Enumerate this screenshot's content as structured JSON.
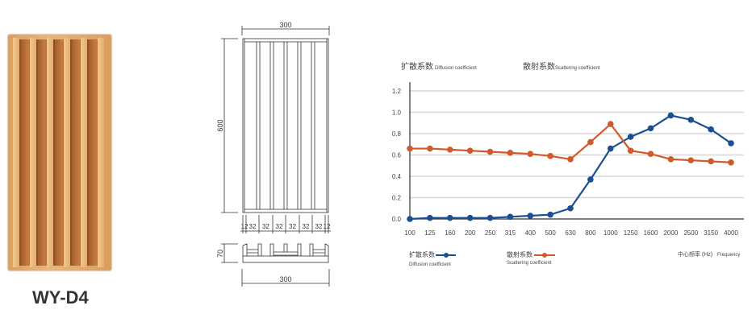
{
  "product": {
    "model": "WY-D4"
  },
  "drawing": {
    "width_top": "300",
    "height": "600",
    "depth": "70",
    "width_bottom": "300",
    "segments": [
      "12",
      "32",
      "32",
      "32",
      "32",
      "32",
      "32",
      "12"
    ]
  },
  "chart_data": {
    "type": "line",
    "title_left": {
      "zh": "扩散系数",
      "en": "Diffusion coefficient"
    },
    "title_right": {
      "zh": "散射系数",
      "en": "Scattering coefficient"
    },
    "xlabel": {
      "zh": "中心频率 (Hz)",
      "en": "Frequency"
    },
    "categories": [
      "100",
      "125",
      "160",
      "200",
      "250",
      "315",
      "400",
      "500",
      "630",
      "800",
      "1000",
      "1250",
      "1600",
      "2000",
      "2500",
      "3150",
      "4000"
    ],
    "yticks": [
      "0.0",
      "0.2",
      "0.4",
      "0.6",
      "0.8",
      "1.0",
      "1.2"
    ],
    "ylim": [
      0,
      1.2
    ],
    "grid": true,
    "legend_position": "bottom",
    "series": [
      {
        "name": "扩散系数",
        "name_en": "Diffusion coefficient",
        "color": "#1a4f94",
        "values": [
          0,
          0.01,
          0.01,
          0.01,
          0.01,
          0.02,
          0.03,
          0.04,
          0.1,
          0.37,
          0.66,
          0.77,
          0.85,
          0.97,
          0.93,
          0.84,
          0.71
        ]
      },
      {
        "name": "散射系数",
        "name_en": "Scattering coefficient",
        "color": "#d05a2a",
        "values": [
          0.66,
          0.66,
          0.65,
          0.64,
          0.63,
          0.62,
          0.61,
          0.59,
          0.56,
          0.72,
          0.89,
          0.64,
          0.61,
          0.56,
          0.55,
          0.54,
          0.53
        ]
      }
    ]
  }
}
